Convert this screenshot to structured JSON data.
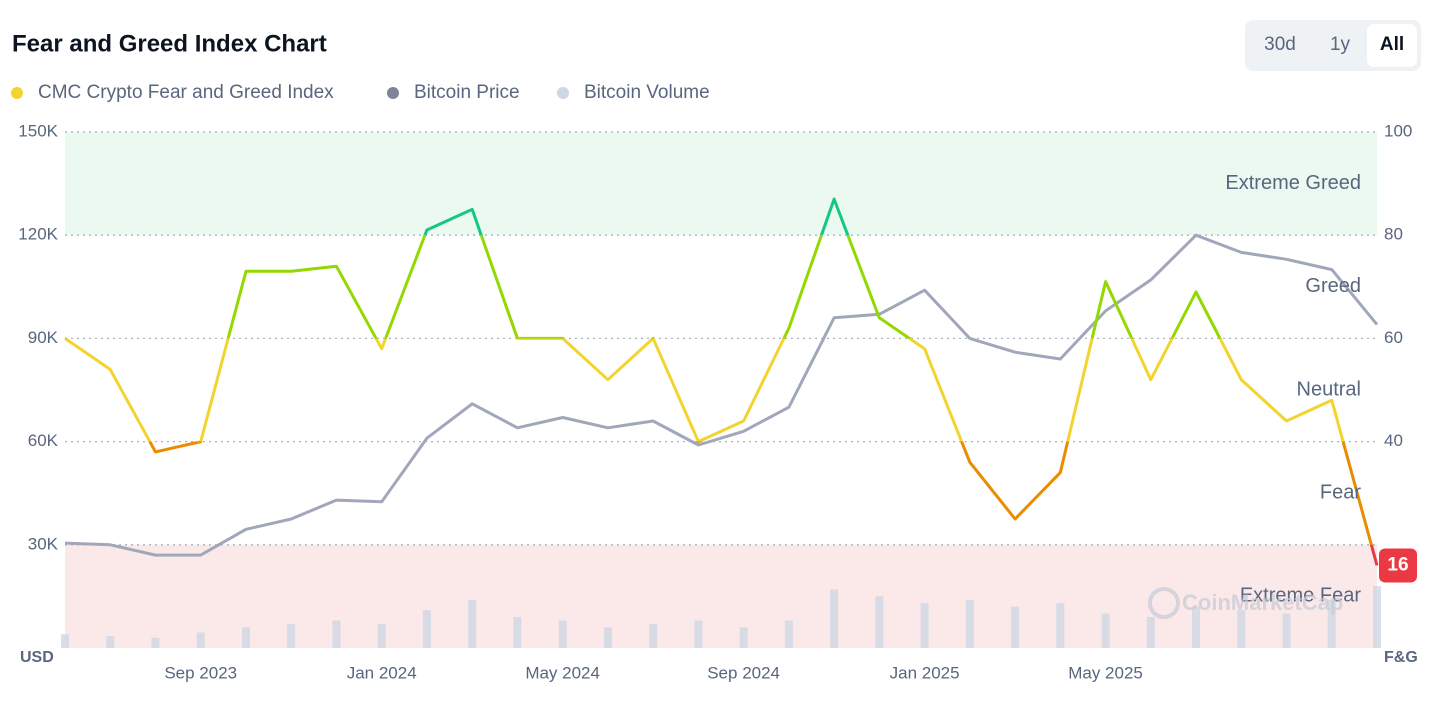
{
  "chart_data": {
    "type": "line",
    "title": "Fear and Greed Index Chart",
    "range_buttons": [
      "30d",
      "1y",
      "All"
    ],
    "active_button": "All",
    "y_axis_label": "USD",
    "y2_axis_label": "F&G",
    "watermark": "CoinMarketCap",
    "categories": [
      null,
      null,
      null,
      "Sep 2023",
      null,
      null,
      null,
      "Jan 2024",
      null,
      null,
      null,
      "May 2024",
      null,
      null,
      null,
      "Sep 2024",
      null,
      null,
      null,
      "Jan 2025",
      null,
      null,
      null,
      "May 2025",
      null,
      null,
      null,
      null,
      null,
      null
    ],
    "series": [
      {
        "name": "CMC Crypto Fear and Greed Index",
        "color": "#f3d42f",
        "axis": "y2",
        "values": [
          60,
          54,
          38,
          40,
          73,
          73,
          74,
          58,
          81,
          85,
          60,
          60,
          52,
          60,
          40,
          44,
          62,
          87,
          64,
          58,
          36,
          25,
          34,
          71,
          52,
          69,
          52,
          44,
          48,
          16
        ]
      },
      {
        "name": "Bitcoin Price",
        "color": "#a1a7bb",
        "axis": "y",
        "values": [
          30500,
          30000,
          27000,
          27000,
          34500,
          37500,
          43000,
          42500,
          61000,
          71000,
          64000,
          67000,
          64000,
          66000,
          59000,
          63000,
          70000,
          96000,
          97000,
          104000,
          90000,
          86000,
          84000,
          98000,
          107000,
          120000,
          115000,
          113000,
          110000,
          94000
        ]
      },
      {
        "name": "Bitcoin Volume",
        "color": "#cfd6e4",
        "axis": "y",
        "values": [
          4000,
          3500,
          3000,
          4500,
          6000,
          7000,
          8000,
          7000,
          11000,
          14000,
          9000,
          8000,
          6000,
          7000,
          8000,
          6000,
          8000,
          17000,
          15000,
          13000,
          14000,
          12000,
          13000,
          10000,
          9000,
          12000,
          11000,
          10000,
          14000,
          18000
        ]
      }
    ],
    "ylim": [
      0,
      150000
    ],
    "yticks": [
      {
        "value": 30000,
        "label": "30K"
      },
      {
        "value": 60000,
        "label": "60K"
      },
      {
        "value": 90000,
        "label": "90K"
      },
      {
        "value": 120000,
        "label": "120K"
      },
      {
        "value": 150000,
        "label": "150K"
      }
    ],
    "y2lim": [
      0,
      100
    ],
    "y2ticks": [
      40,
      60,
      80,
      100
    ],
    "grid": true,
    "zones": [
      {
        "label": "Extreme Fear",
        "from": 0,
        "to": 20,
        "color": "#ea3943",
        "background": "#fbe9ea"
      },
      {
        "label": "Fear",
        "from": 20,
        "to": 40,
        "color": "#ea8c00"
      },
      {
        "label": "Neutral",
        "from": 40,
        "to": 60,
        "color": "#f3d42f"
      },
      {
        "label": "Greed",
        "from": 60,
        "to": 80,
        "color": "#93d900"
      },
      {
        "label": "Extreme Greed",
        "from": 80,
        "to": 100,
        "color": "#16c784",
        "background": "#ebf9f1"
      }
    ]
  }
}
